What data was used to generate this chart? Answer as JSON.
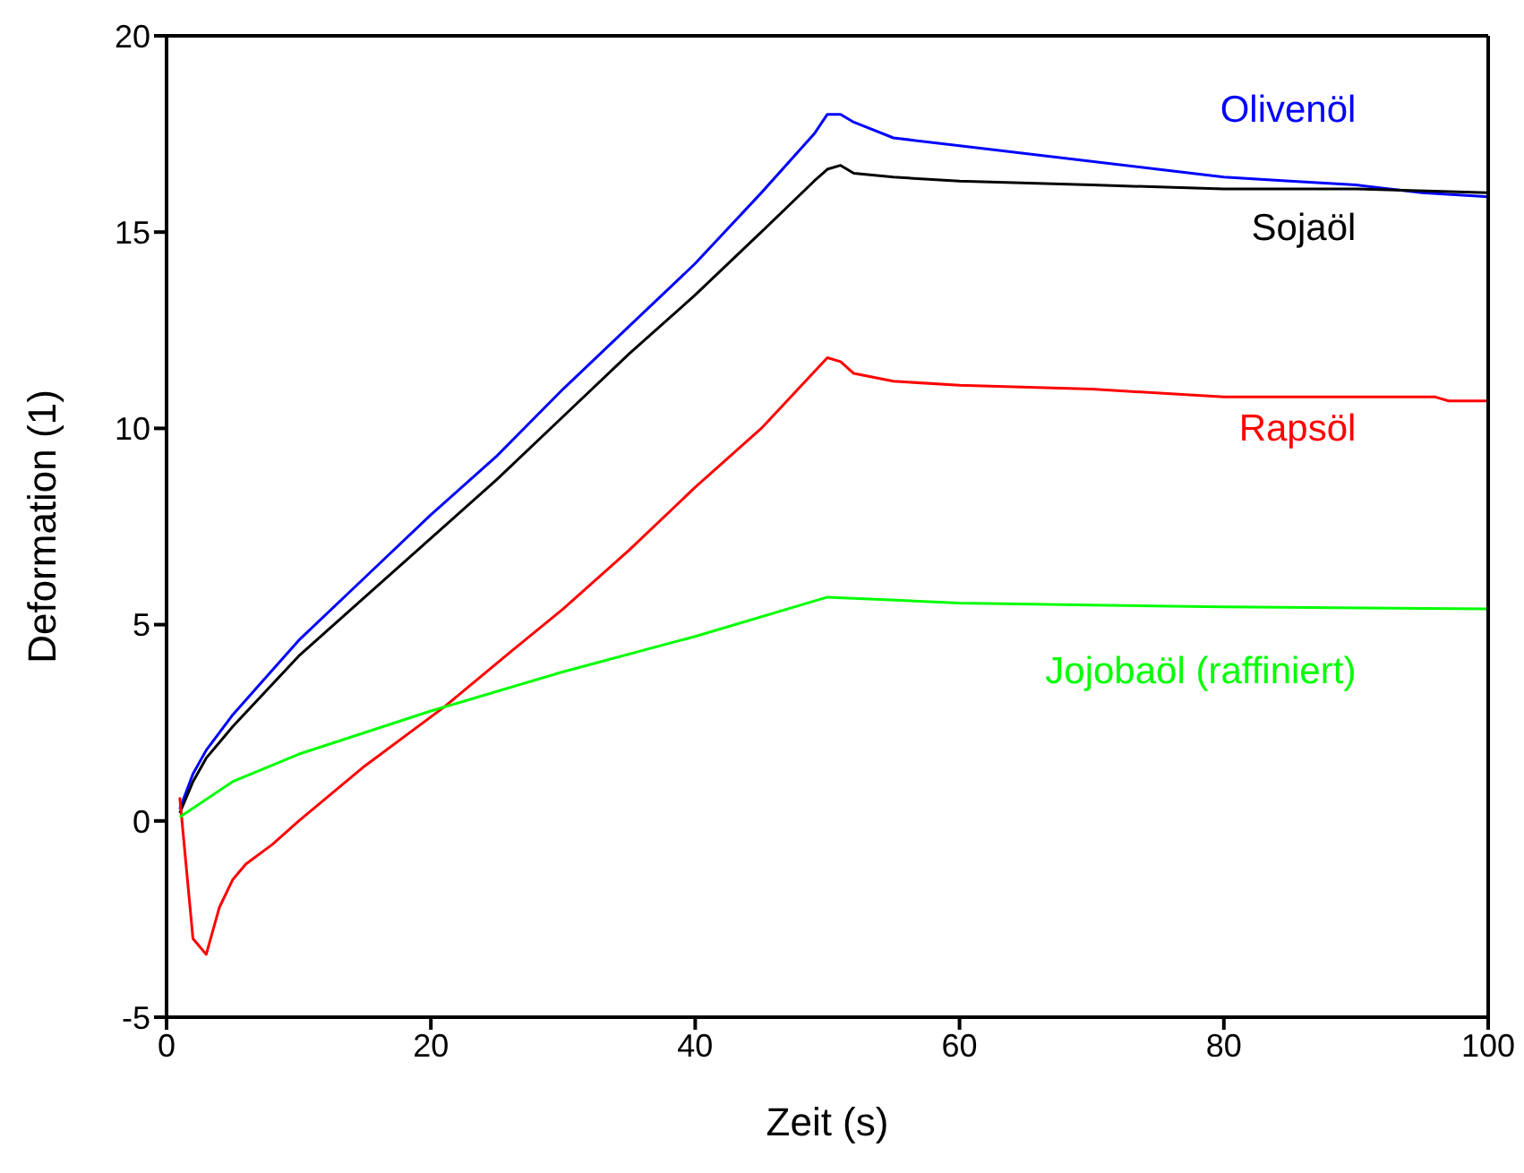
{
  "chart_data": {
    "type": "line",
    "xlabel": "Zeit (s)",
    "ylabel": "Deformation (1)",
    "xlim": [
      0,
      100
    ],
    "ylim": [
      -5,
      20
    ],
    "xticks": [
      0,
      20,
      40,
      60,
      80,
      100
    ],
    "yticks": [
      -5,
      0,
      5,
      10,
      15,
      20
    ],
    "legend": false,
    "marker": "none",
    "line_style": "solid",
    "series": [
      {
        "name": "Olivenöl",
        "color": "#0000ff",
        "x": [
          1,
          2,
          3,
          5,
          10,
          15,
          20,
          25,
          30,
          35,
          40,
          45,
          49,
          50,
          51,
          52,
          55,
          60,
          65,
          70,
          75,
          80,
          85,
          90,
          95,
          100
        ],
        "values": [
          0.3,
          1.2,
          1.8,
          2.7,
          4.6,
          6.2,
          7.8,
          9.3,
          11,
          12.6,
          14.2,
          16,
          17.5,
          18,
          18,
          17.8,
          17.4,
          17.2,
          17,
          16.8,
          16.6,
          16.4,
          16.3,
          16.2,
          16,
          15.9
        ]
      },
      {
        "name": "Sojaöl",
        "color": "#000000",
        "x": [
          1,
          2,
          3,
          5,
          10,
          15,
          20,
          25,
          30,
          35,
          40,
          45,
          49,
          50,
          51,
          52,
          55,
          60,
          70,
          80,
          90,
          100
        ],
        "values": [
          0.2,
          1,
          1.6,
          2.4,
          4.2,
          5.7,
          7.2,
          8.7,
          10.3,
          11.9,
          13.4,
          15,
          16.3,
          16.6,
          16.7,
          16.5,
          16.4,
          16.3,
          16.2,
          16.1,
          16.1,
          16
        ]
      },
      {
        "name": "Rapsöl",
        "color": "#ff0000",
        "x": [
          1,
          2,
          3,
          4,
          5,
          6,
          8,
          10,
          15,
          21,
          26,
          30,
          35,
          40,
          45,
          50,
          51,
          52,
          55,
          60,
          70,
          80,
          96,
          97,
          100
        ],
        "values": [
          0.6,
          -3,
          -3.4,
          -2.2,
          -1.5,
          -1.1,
          -0.6,
          0,
          1.4,
          2.9,
          4.3,
          5.4,
          6.9,
          8.5,
          10,
          11.8,
          11.7,
          11.4,
          11.2,
          11.1,
          11,
          10.8,
          10.8,
          10.7,
          10.7
        ]
      },
      {
        "name": "Jojobaöl (raffiniert)",
        "color": "#00ff00",
        "x": [
          1,
          5,
          10,
          20,
          30,
          40,
          50,
          60,
          70,
          80,
          100
        ],
        "values": [
          0.1,
          1,
          1.7,
          2.8,
          3.8,
          4.7,
          5.7,
          5.55,
          5.5,
          5.45,
          5.4
        ]
      }
    ]
  }
}
